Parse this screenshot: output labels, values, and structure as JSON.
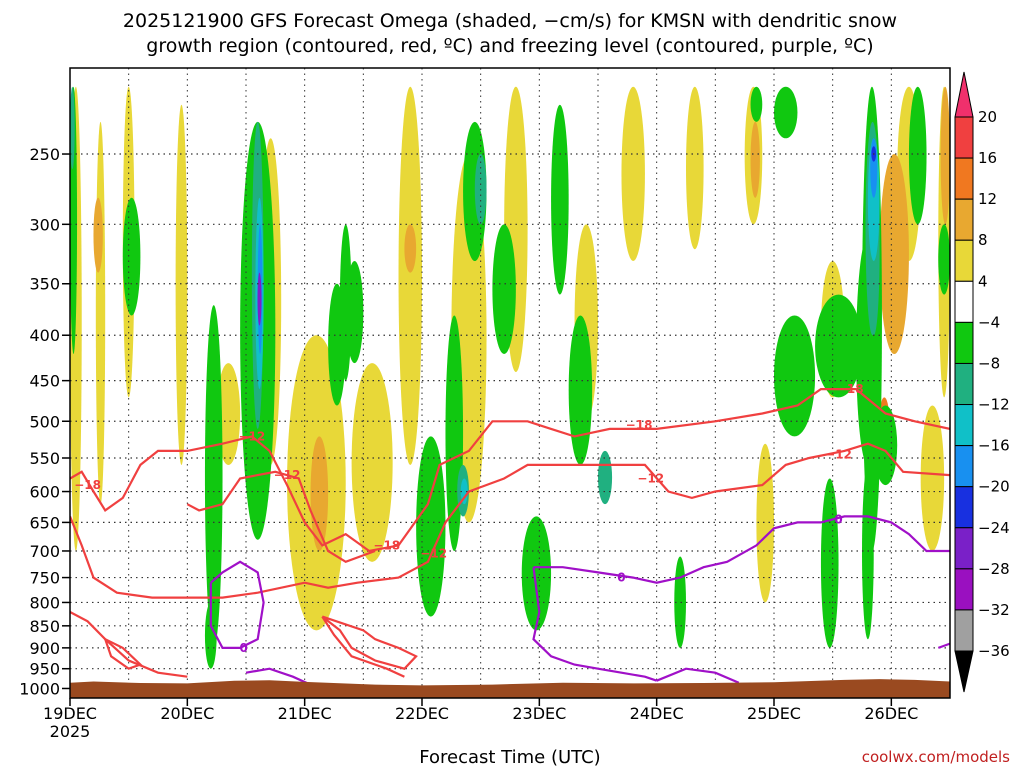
{
  "chart_data": {
    "type": "heatmap",
    "title_lines": [
      "2025121900 GFS Forecast Omega (shaded, −cm/s) for KMSN with dendritic snow",
      "growth region (contoured, red, ºC) and freezing level (contoured, purple, ºC)"
    ],
    "xlabel": "Forecast Time (UTC)",
    "x_ticks": [
      "19DEC",
      "20DEC",
      "21DEC",
      "22DEC",
      "23DEC",
      "24DEC",
      "25DEC",
      "26DEC"
    ],
    "x_year": "2025",
    "y_ticks": [
      "250",
      "300",
      "350",
      "400",
      "450",
      "500",
      "550",
      "600",
      "650",
      "700",
      "750",
      "800",
      "850",
      "900",
      "950",
      "1000"
    ],
    "y_values_hpa": [
      250,
      300,
      350,
      400,
      450,
      500,
      550,
      600,
      650,
      700,
      750,
      800,
      850,
      900,
      950,
      1000
    ],
    "y_range_hpa": [
      200,
      1025
    ],
    "x_range_days": [
      0,
      7.5
    ],
    "grid": true,
    "colorbar": {
      "labels": [
        "20",
        "16",
        "12",
        "8",
        "4",
        "−4",
        "−8",
        "−12",
        "−16",
        "−20",
        "−24",
        "−28",
        "−32",
        "−36"
      ],
      "colors": [
        "#f0306c",
        "#f04040",
        "#f07820",
        "#e8a830",
        "#e8d838",
        "#ffffff",
        "#10c810",
        "#20b080",
        "#10c0c8",
        "#1890f0",
        "#1830e0",
        "#7a20c8",
        "#9a10c0",
        "#a0a0a0",
        "#000000"
      ]
    },
    "shading_colors": {
      "pos4": "#e8d838",
      "pos8": "#e8a830",
      "pos12": "#f07820",
      "pos16": "#f04040",
      "neg4": "#10c810",
      "neg8": "#20b080",
      "neg12": "#10c0c8",
      "neg16": "#1890f0",
      "neg20": "#1830e0",
      "neg24": "#7a20c8",
      "ground": "#9a4a20"
    },
    "contours": {
      "dendritic": {
        "color": "#f04040",
        "labels": [
          "−18",
          "−12",
          "−12",
          "−18",
          "−12",
          "−18",
          "−12",
          "−18",
          "−12"
        ]
      },
      "freezing": {
        "color": "#a010c8",
        "labels": [
          "0",
          "0",
          "0"
        ]
      }
    },
    "credit": "coolwx.com/models"
  }
}
